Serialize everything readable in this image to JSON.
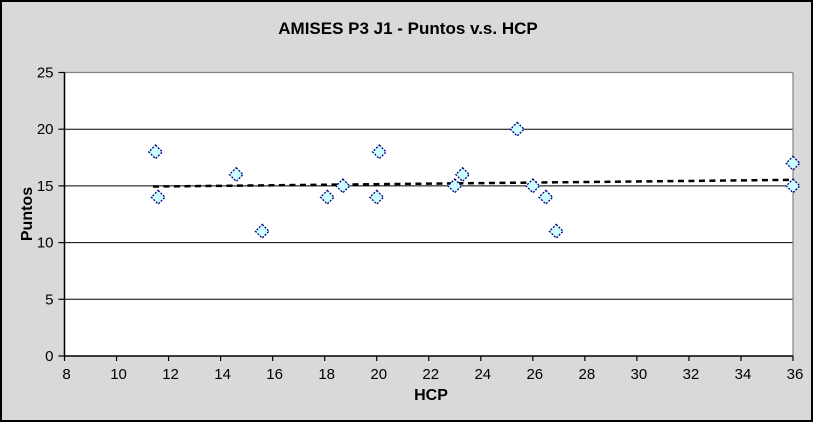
{
  "window": {
    "background": "#ffffff"
  },
  "chart_data": {
    "type": "scatter",
    "title": "AMISES P3 J1 - Puntos v.s. HCP",
    "xlabel": "HCP",
    "ylabel": "Puntos",
    "xlim": [
      8,
      36
    ],
    "ylim": [
      0,
      25
    ],
    "x_ticks": [
      8,
      10,
      12,
      14,
      16,
      18,
      20,
      22,
      24,
      26,
      28,
      30,
      32,
      34,
      36
    ],
    "y_ticks": [
      0,
      5,
      10,
      15,
      20,
      25
    ],
    "grid": "horizontal-only",
    "legend": "none",
    "series": [
      {
        "name": "Puntos",
        "marker": "diamond",
        "points": [
          {
            "x": 11.5,
            "y": 18
          },
          {
            "x": 11.6,
            "y": 14
          },
          {
            "x": 14.6,
            "y": 16
          },
          {
            "x": 15.6,
            "y": 11
          },
          {
            "x": 18.1,
            "y": 14
          },
          {
            "x": 18.7,
            "y": 15
          },
          {
            "x": 20.1,
            "y": 18
          },
          {
            "x": 20.0,
            "y": 14
          },
          {
            "x": 23.0,
            "y": 15
          },
          {
            "x": 23.3,
            "y": 16
          },
          {
            "x": 25.4,
            "y": 20
          },
          {
            "x": 26.0,
            "y": 15
          },
          {
            "x": 26.5,
            "y": 14
          },
          {
            "x": 26.9,
            "y": 11
          },
          {
            "x": 36.0,
            "y": 17
          },
          {
            "x": 36.0,
            "y": 15
          }
        ]
      }
    ],
    "trendline": {
      "type": "linear",
      "style": "dotted",
      "slope": 0.024,
      "intercept": 14.67,
      "x_start": 11.4,
      "x_end": 36
    },
    "colors": {
      "chart_background": "#d9d9d9",
      "plot_background": "#ffffff",
      "marker_fill": "#ccffff",
      "marker_stroke": "#000080",
      "gridline": "#000000",
      "axis_line": "#000000",
      "plot_border": "#848284",
      "trendline": "#000000",
      "outer_border": "#000000",
      "text": "#000000"
    }
  }
}
